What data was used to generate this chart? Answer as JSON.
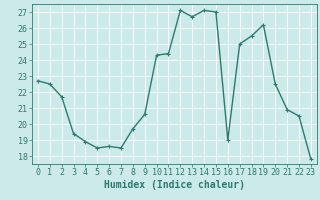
{
  "x": [
    0,
    1,
    2,
    3,
    4,
    5,
    6,
    7,
    8,
    9,
    10,
    11,
    12,
    13,
    14,
    15,
    16,
    17,
    18,
    19,
    20,
    21,
    22,
    23
  ],
  "y": [
    22.7,
    22.5,
    21.7,
    19.4,
    18.9,
    18.5,
    18.6,
    18.5,
    19.7,
    20.6,
    24.3,
    24.4,
    27.1,
    26.7,
    27.1,
    27.0,
    19.0,
    25.0,
    25.5,
    26.2,
    22.5,
    20.9,
    20.5,
    17.8
  ],
  "line_color": "#2d7a6e",
  "marker": "+",
  "marker_size": 3,
  "linewidth": 1.0,
  "xlabel": "Humidex (Indice chaleur)",
  "ylim": [
    17.5,
    27.5
  ],
  "yticks": [
    18,
    19,
    20,
    21,
    22,
    23,
    24,
    25,
    26,
    27
  ],
  "xticks": [
    0,
    1,
    2,
    3,
    4,
    5,
    6,
    7,
    8,
    9,
    10,
    11,
    12,
    13,
    14,
    15,
    16,
    17,
    18,
    19,
    20,
    21,
    22,
    23
  ],
  "bg_color": "#cceaea",
  "grid_color": "#ffffff",
  "tick_color": "#2d7a6e",
  "label_color": "#2d7a6e",
  "xlabel_fontsize": 7,
  "tick_fontsize": 6
}
